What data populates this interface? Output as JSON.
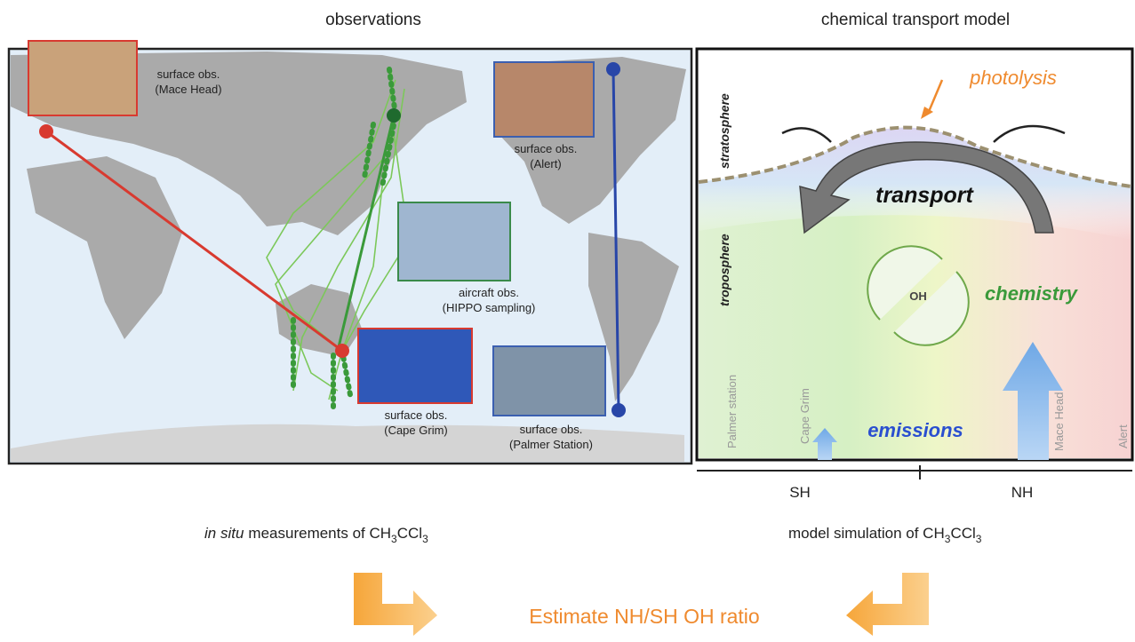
{
  "observations": {
    "title": "observations",
    "sites": [
      {
        "kind": "surface obs.",
        "name": "(Mace Head)"
      },
      {
        "kind": "surface obs.",
        "name": "(Alert)"
      },
      {
        "kind": "aircraft obs.",
        "name": "(HIPPO sampling)"
      },
      {
        "kind": "surface obs.",
        "name": "(Cape Grim)"
      },
      {
        "kind": "surface obs.",
        "name": "(Palmer Station)"
      }
    ],
    "caption": {
      "italic": "in situ",
      "text": "measurements of CH",
      "sub1": "3",
      "mid": "CCl",
      "sub2": "3"
    }
  },
  "model": {
    "title": "chemical transport model",
    "labels": {
      "photolysis": "photolysis",
      "stratosphere": "stratosphere",
      "troposphere": "troposphere",
      "transport": "transport",
      "oh": "OH",
      "chemistry": "chemistry",
      "emissions": "emissions"
    },
    "stations": [
      "Palmer station",
      "Cape Grim",
      "Mace Head",
      "Alert"
    ],
    "hemispheres": [
      "SH",
      "NH"
    ],
    "caption": {
      "text": "model simulation of CH",
      "sub1": "3",
      "mid": "CCl",
      "sub2": "3"
    }
  },
  "conclusion": "Estimate NH/SH OH ratio"
}
